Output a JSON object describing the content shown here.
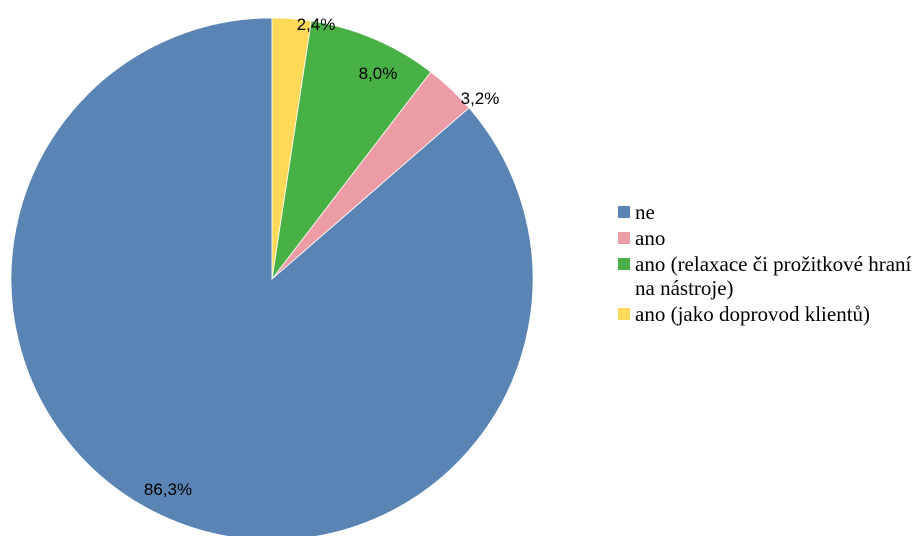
{
  "chart_data": {
    "type": "pie",
    "title": "",
    "categories": [
      "ne",
      "ano",
      "ano (relaxace či prožitkové hraní na nástroje)",
      "ano (jako doprovod klientů)"
    ],
    "values": [
      86.3,
      3.2,
      8.0,
      2.4
    ],
    "labels": [
      "86,3%",
      "3,2%",
      "8,0%",
      "2,4%"
    ],
    "colors": [
      "#5a84b3",
      "#ec9ca4",
      "#47b145",
      "#fed957"
    ],
    "legend_position": "right"
  }
}
